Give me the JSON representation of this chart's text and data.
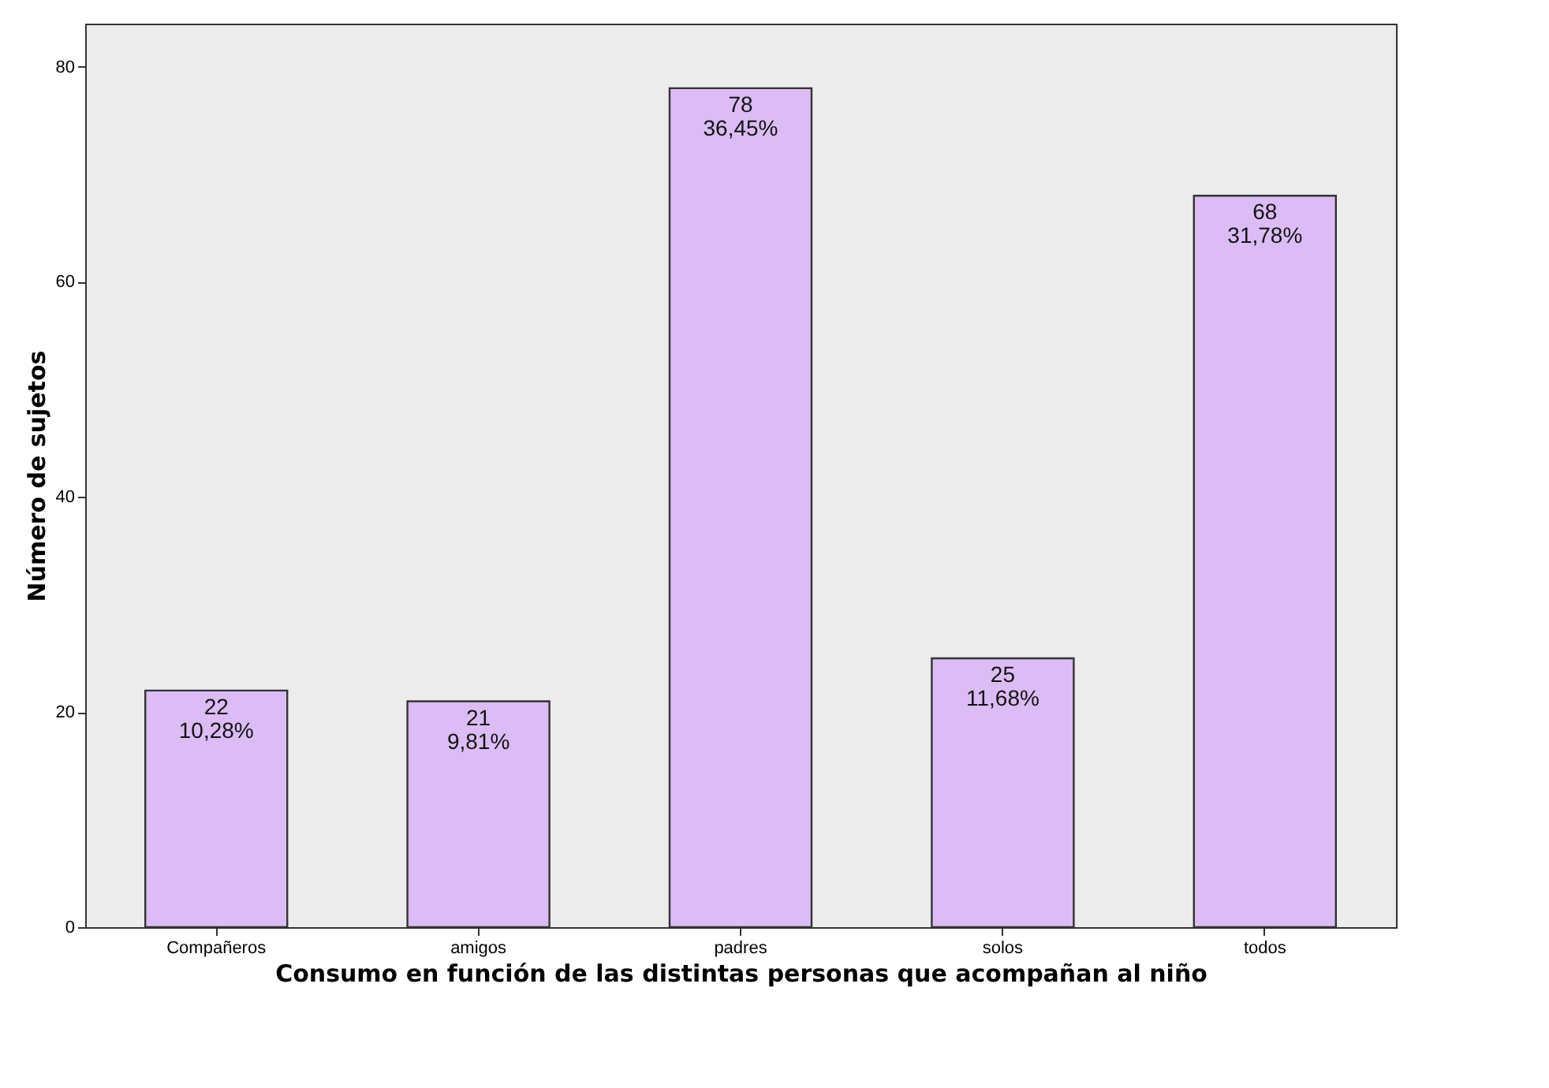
{
  "chart_data": {
    "type": "bar",
    "xlabel": "Consumo en función de las distintas personas que acompañan al niño",
    "ylabel": "Número de sujetos",
    "categories": [
      "Compañeros",
      "amigos",
      "padres",
      "solos",
      "todos"
    ],
    "values": [
      22,
      21,
      78,
      25,
      68
    ],
    "color": "#dcbcf4",
    "value_labels": [
      "22\n10,28%",
      "21\n9,81%",
      "78\n36,45%",
      "25\n11,68%",
      "68\n31,78%"
    ],
    "ylim": [
      0,
      84
    ],
    "yticks": [
      0,
      20,
      40,
      60,
      80
    ],
    "grid": false
  }
}
